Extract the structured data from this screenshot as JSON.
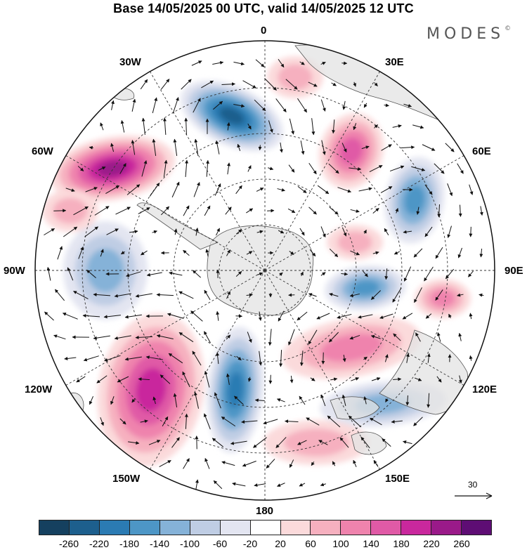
{
  "title": "Base 14/05/2025 00 UTC, valid 14/05/2025 12 UTC",
  "brand": "MODES",
  "brand_mark": "©",
  "longitude_labels": {
    "top": "0",
    "top_right": "30E",
    "right_upper": "60E",
    "right": "90E",
    "right_lower": "120E",
    "bottom_right": "150E",
    "bottom": "180",
    "bottom_left": "150W",
    "left_lower": "120W",
    "left": "90W",
    "left_upper": "60W",
    "top_left": "30W"
  },
  "reference_vector": {
    "label": "30"
  },
  "colorbar": {
    "ticks": [
      "-260",
      "-220",
      "-180",
      "-140",
      "-100",
      "-60",
      "-20",
      "20",
      "60",
      "100",
      "140",
      "180",
      "220",
      "260"
    ],
    "colors": [
      "#15405f",
      "#1d5f8d",
      "#2b7bb3",
      "#4d96c6",
      "#85b2d8",
      "#bfcde4",
      "#e3e5f1",
      "#ffffff",
      "#fbdadb",
      "#f6b0bf",
      "#ef83ad",
      "#e05aa6",
      "#c9289d",
      "#9a1a89",
      "#5e0d74"
    ]
  },
  "colors": {
    "land": "#e3e3e3",
    "coast": "#555555",
    "grid": "#333333",
    "vector": "#111111"
  }
}
